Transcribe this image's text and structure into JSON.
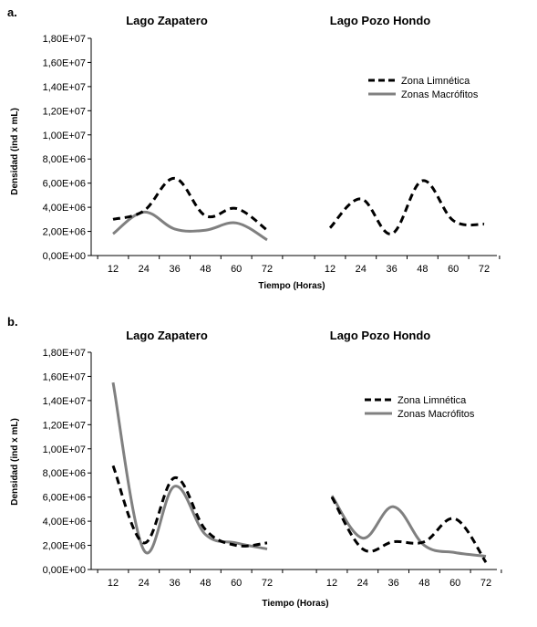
{
  "figure": {
    "panels": [
      {
        "label": "a.",
        "ylabel": "Densidad (ind x mL)",
        "xlabel": "Tiempo (Horas)",
        "yticks": [
          "0,00E+00",
          "2,00E+06",
          "4,00E+06",
          "6,00E+06",
          "8,00E+06",
          "1,00E+07",
          "1,20E+07",
          "1,40E+07",
          "1,60E+07",
          "1,80E+07"
        ],
        "legend": [
          "Zona Limnética",
          "Zonas Macrófitos"
        ]
      },
      {
        "label": "b.",
        "ylabel": "Densidad (ind x mL)",
        "xlabel": "Tiempo (Horas)",
        "yticks": [
          "0,00E+00",
          "2,00E+06",
          "4,00E+06",
          "6,00E+06",
          "8,00E+06",
          "1,00E+07",
          "1,20E+07",
          "1,40E+07",
          "1,60E+07",
          "1,80E+07"
        ],
        "legend": [
          "Zona Limnética",
          "Zonas Macrófitos"
        ]
      }
    ]
  },
  "chart_data": [
    {
      "type": "line",
      "panel": "a.",
      "ylabel": "Densidad (ind x mL)",
      "xlabel": "Tiempo (Horas)",
      "ylim": [
        0,
        18000000
      ],
      "groups": [
        {
          "title": "Lago Zapatero",
          "x": [
            12,
            24,
            36,
            48,
            60,
            72
          ],
          "series": [
            {
              "name": "Zona Limnética",
              "style": "dashed",
              "color": "#000000",
              "values": [
                3000000,
                3700000,
                6400000,
                3300000,
                3900000,
                2100000
              ]
            },
            {
              "name": "Zonas Macrófitos",
              "style": "solid",
              "color": "#808080",
              "values": [
                1800000,
                3600000,
                2200000,
                2100000,
                2700000,
                1300000
              ]
            }
          ]
        },
        {
          "title": "Lago Pozo Hondo",
          "x": [
            12,
            24,
            36,
            48,
            60,
            72
          ],
          "series": [
            {
              "name": "Zona Limnética",
              "style": "dashed",
              "color": "#000000",
              "values": [
                2300000,
                4700000,
                1800000,
                6200000,
                2900000,
                2600000
              ]
            }
          ]
        }
      ],
      "legend_position": "top-right"
    },
    {
      "type": "line",
      "panel": "b.",
      "ylabel": "Densidad (ind x mL)",
      "xlabel": "Tiempo (Horas)",
      "ylim": [
        0,
        18000000
      ],
      "groups": [
        {
          "title": "Lago Zapatero",
          "x": [
            12,
            24,
            36,
            48,
            60,
            72
          ],
          "series": [
            {
              "name": "Zona Limnética",
              "style": "dashed",
              "color": "#000000",
              "values": [
                8600000,
                2200000,
                7600000,
                3300000,
                2000000,
                2200000
              ]
            },
            {
              "name": "Zonas Macrófitos",
              "style": "solid",
              "color": "#808080",
              "values": [
                15500000,
                1600000,
                6900000,
                2900000,
                2200000,
                1700000
              ]
            }
          ]
        },
        {
          "title": "Lago Pozo Hondo",
          "x": [
            12,
            24,
            36,
            48,
            60,
            72
          ],
          "series": [
            {
              "name": "Zona Limnética",
              "style": "dashed",
              "color": "#000000",
              "values": [
                6000000,
                1700000,
                2300000,
                2300000,
                4200000,
                600000
              ]
            },
            {
              "name": "Zonas Macrófitos",
              "style": "solid",
              "color": "#808080",
              "values": [
                6100000,
                2600000,
                5200000,
                2000000,
                1400000,
                1100000
              ]
            }
          ]
        }
      ],
      "legend_position": "top-right"
    }
  ]
}
